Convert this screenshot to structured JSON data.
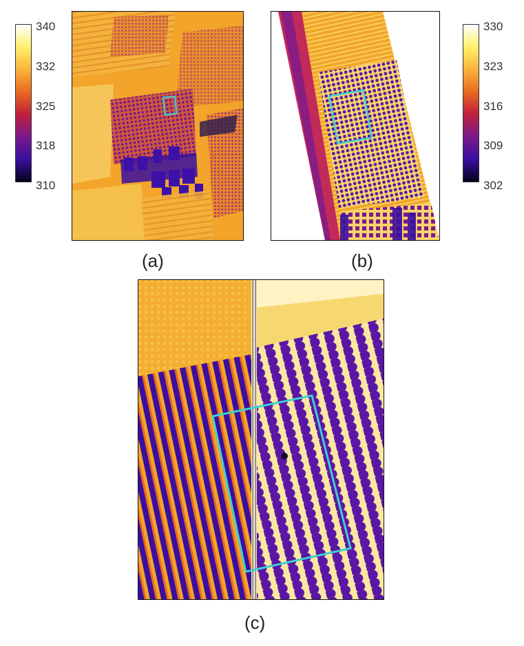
{
  "colorbar_left": {
    "ticks": [
      "340",
      "332",
      "325",
      "318",
      "310"
    ],
    "colors": [
      "#ffffff",
      "#fff06a",
      "#fbb43a",
      "#e86a20",
      "#c01f3c",
      "#7a1a8c",
      "#3a0ea0",
      "#05021a"
    ]
  },
  "colorbar_right": {
    "ticks": [
      "330",
      "323",
      "316",
      "309",
      "302"
    ],
    "colors": [
      "#ffffff",
      "#fff06a",
      "#fbb43a",
      "#e86a20",
      "#c01f3c",
      "#7a1a8c",
      "#3a0ea0",
      "#05021a"
    ]
  },
  "panels": {
    "a": {
      "caption": "(a)"
    },
    "b": {
      "caption": "(b)"
    },
    "c": {
      "caption": "(c)"
    }
  },
  "colors": {
    "roi_outline": "#3fd0d0",
    "hot_soil": "#f6a81e",
    "cool_canopy": "#5a17a6",
    "bright": "#ffe07a"
  }
}
